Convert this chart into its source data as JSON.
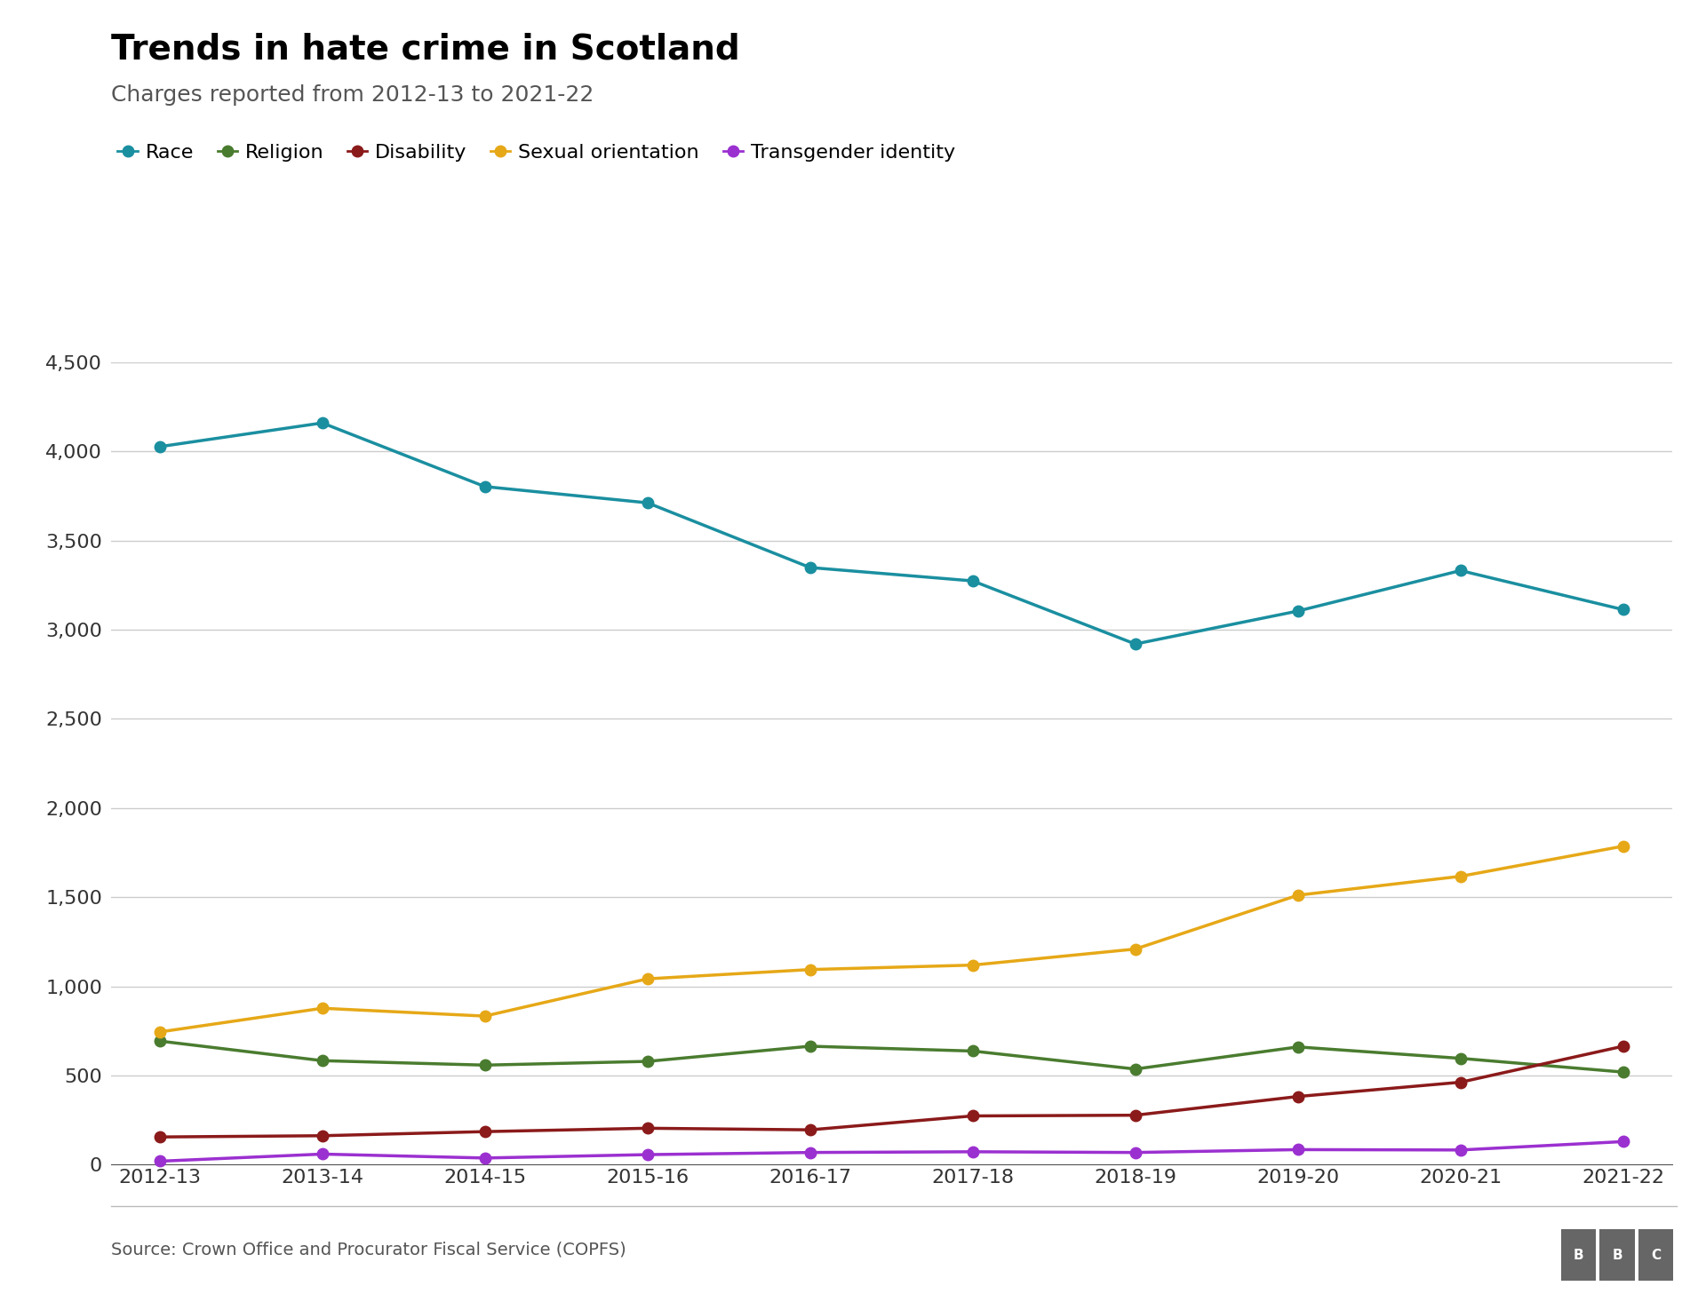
{
  "title": "Trends in hate crime in Scotland",
  "subtitle": "Charges reported from 2012-13 to 2021-22",
  "source": "Source: Crown Office and Procurator Fiscal Service (COPFS)",
  "x_labels": [
    "2012-13",
    "2013-14",
    "2014-15",
    "2015-16",
    "2016-17",
    "2017-18",
    "2018-19",
    "2019-20",
    "2020-21",
    "2021-22"
  ],
  "series": {
    "Race": {
      "values": [
        4027,
        4160,
        3803,
        3712,
        3349,
        3274,
        2920,
        3105,
        3332,
        3113
      ],
      "color": "#1a8fa0"
    },
    "Religion": {
      "values": [
        693,
        583,
        558,
        579,
        664,
        637,
        536,
        660,
        596,
        519
      ],
      "color": "#4a7c2f"
    },
    "Disability": {
      "values": [
        155,
        162,
        185,
        204,
        195,
        273,
        277,
        382,
        462,
        664
      ],
      "color": "#8b1a1a"
    },
    "Sexual orientation": {
      "values": [
        744,
        877,
        833,
        1042,
        1094,
        1119,
        1209,
        1511,
        1617,
        1786
      ],
      "color": "#e6a817"
    },
    "Transgender identity": {
      "values": [
        19,
        59,
        37,
        56,
        68,
        72,
        68,
        84,
        82,
        129
      ],
      "color": "#9b30d0"
    }
  },
  "ylim": [
    0,
    4500
  ],
  "yticks": [
    0,
    500,
    1000,
    1500,
    2000,
    2500,
    3000,
    3500,
    4000,
    4500
  ],
  "background_color": "#ffffff",
  "grid_color": "#cccccc",
  "title_fontsize": 28,
  "subtitle_fontsize": 18,
  "tick_fontsize": 16,
  "legend_fontsize": 16,
  "source_fontsize": 14,
  "marker_size": 9,
  "line_width": 2.5
}
